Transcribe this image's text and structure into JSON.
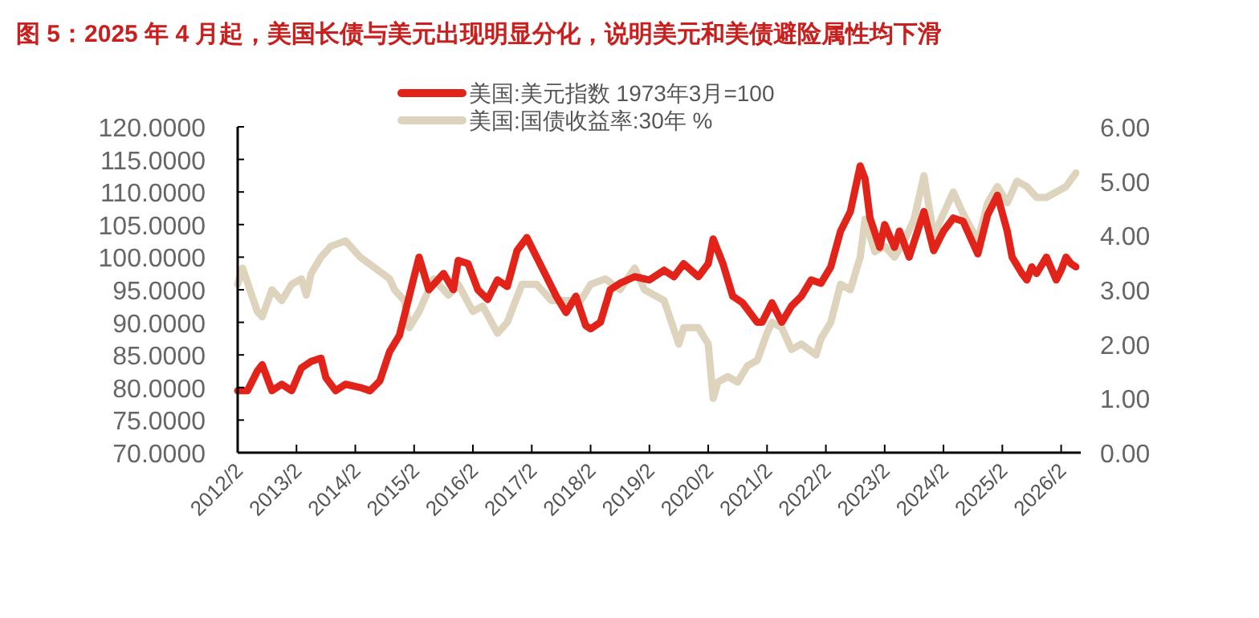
{
  "chart_data": {
    "type": "line",
    "title": "图 5：2025 年 4 月起，美国长债与美元出现明显分化，说明美元和美债避险属性均下滑",
    "legend": "top",
    "grid": false,
    "marker": "none",
    "line_style": "solid",
    "xlim": [
      "2012-02",
      "2026-06"
    ],
    "xticks": [
      {
        "value": "2012-02",
        "label": "2012/2"
      },
      {
        "value": "2013-02",
        "label": "2013/2"
      },
      {
        "value": "2014-02",
        "label": "2014/2"
      },
      {
        "value": "2015-02",
        "label": "2015/2"
      },
      {
        "value": "2016-02",
        "label": "2016/2"
      },
      {
        "value": "2017-02",
        "label": "2017/2"
      },
      {
        "value": "2018-02",
        "label": "2018/2"
      },
      {
        "value": "2019-02",
        "label": "2019/2"
      },
      {
        "value": "2020-02",
        "label": "2020/2"
      },
      {
        "value": "2021-02",
        "label": "2021/2"
      },
      {
        "value": "2022-02",
        "label": "2022/2"
      },
      {
        "value": "2023-02",
        "label": "2023/2"
      },
      {
        "value": "2024-02",
        "label": "2024/2"
      },
      {
        "value": "2025-02",
        "label": "2025/2"
      },
      {
        "value": "2026-02",
        "label": "2026/2"
      }
    ],
    "ylim": [
      70,
      120
    ],
    "yticks": [
      {
        "value": 70,
        "label": "70.0000"
      },
      {
        "value": 75,
        "label": "75.0000"
      },
      {
        "value": 80,
        "label": "80.0000"
      },
      {
        "value": 85,
        "label": "85.0000"
      },
      {
        "value": 90,
        "label": "90.0000"
      },
      {
        "value": 95,
        "label": "95.0000"
      },
      {
        "value": 100,
        "label": "100.0000"
      },
      {
        "value": 105,
        "label": "105.0000"
      },
      {
        "value": 110,
        "label": "110.0000"
      },
      {
        "value": 115,
        "label": "115.0000"
      },
      {
        "value": 120,
        "label": "120.0000"
      }
    ],
    "y2lim": [
      0,
      6
    ],
    "y2ticks": [
      {
        "value": 0,
        "label": "0.00"
      },
      {
        "value": 1,
        "label": "1.00"
      },
      {
        "value": 2,
        "label": "2.00"
      },
      {
        "value": 3,
        "label": "3.00"
      },
      {
        "value": 4,
        "label": "4.00"
      },
      {
        "value": 5,
        "label": "5.00"
      },
      {
        "value": 6,
        "label": "6.00"
      }
    ],
    "series": [
      {
        "name": "美国:美元指数 1973年3月=100",
        "color": "#e2231a",
        "axis": "y",
        "x": [
          "2012-02",
          "2012-04",
          "2012-06",
          "2012-07",
          "2012-09",
          "2012-11",
          "2013-01",
          "2013-03",
          "2013-05",
          "2013-07",
          "2013-08",
          "2013-10",
          "2013-12",
          "2014-03",
          "2014-05",
          "2014-07",
          "2014-09",
          "2014-11",
          "2015-01",
          "2015-03",
          "2015-05",
          "2015-08",
          "2015-10",
          "2015-11",
          "2016-01",
          "2016-03",
          "2016-05",
          "2016-07",
          "2016-09",
          "2016-11",
          "2017-01",
          "2017-03",
          "2017-05",
          "2017-07",
          "2017-09",
          "2017-11",
          "2018-01",
          "2018-02",
          "2018-04",
          "2018-06",
          "2018-08",
          "2018-11",
          "2019-02",
          "2019-05",
          "2019-07",
          "2019-09",
          "2019-12",
          "2020-02",
          "2020-03",
          "2020-05",
          "2020-07",
          "2020-09",
          "2020-12",
          "2021-01",
          "2021-03",
          "2021-05",
          "2021-07",
          "2021-09",
          "2021-11",
          "2022-01",
          "2022-03",
          "2022-05",
          "2022-07",
          "2022-09",
          "2022-10",
          "2022-11",
          "2023-01",
          "2023-02",
          "2023-04",
          "2023-05",
          "2023-07",
          "2023-10",
          "2023-12",
          "2024-02",
          "2024-04",
          "2024-06",
          "2024-09",
          "2024-11",
          "2025-01",
          "2025-03",
          "2025-04",
          "2025-06",
          "2025-07",
          "2025-08",
          "2025-09",
          "2025-11",
          "2026-01",
          "2026-02",
          "2026-03",
          "2026-04",
          "2026-05"
        ],
        "values": [
          79.5,
          79.5,
          82.5,
          83.5,
          79.5,
          80.5,
          79.5,
          83,
          84,
          84.5,
          81.5,
          79.5,
          80.5,
          80,
          79.5,
          81,
          85.5,
          88,
          94,
          100,
          95,
          97.5,
          95,
          99.5,
          99,
          95,
          93.5,
          96.5,
          95.5,
          101,
          103,
          100,
          97,
          94,
          91.5,
          94,
          89.5,
          89,
          90,
          95,
          96,
          97,
          96.5,
          98,
          97,
          99,
          97,
          99,
          102.8,
          99,
          94,
          93,
          90,
          90,
          93,
          90,
          92.5,
          94,
          96.5,
          96,
          98.5,
          104,
          107,
          114,
          112,
          106,
          101.5,
          105,
          101.5,
          104,
          100,
          107,
          101,
          104,
          106,
          105.5,
          100.5,
          106.5,
          109.5,
          104,
          100,
          97.5,
          96.5,
          98.5,
          97.5,
          100,
          96.5,
          98,
          100,
          99,
          98.5
        ]
      },
      {
        "name": "美国:国债收益率:30年 %",
        "color": "#ded3bc",
        "axis": "y2",
        "x": [
          "2012-02",
          "2012-03",
          "2012-06",
          "2012-07",
          "2012-09",
          "2012-11",
          "2013-01",
          "2013-03",
          "2013-04",
          "2013-05",
          "2013-07",
          "2013-09",
          "2013-12",
          "2014-01",
          "2014-03",
          "2014-06",
          "2014-09",
          "2014-10",
          "2014-12",
          "2015-01",
          "2015-03",
          "2015-06",
          "2015-09",
          "2015-11",
          "2016-02",
          "2016-04",
          "2016-07",
          "2016-09",
          "2016-12",
          "2017-03",
          "2017-06",
          "2017-09",
          "2017-12",
          "2018-02",
          "2018-05",
          "2018-08",
          "2018-11",
          "2019-01",
          "2019-03",
          "2019-05",
          "2019-08",
          "2019-09",
          "2019-12",
          "2020-02",
          "2020-03",
          "2020-04",
          "2020-06",
          "2020-08",
          "2020-10",
          "2020-12",
          "2021-02",
          "2021-03",
          "2021-05",
          "2021-07",
          "2021-09",
          "2021-12",
          "2022-01",
          "2022-03",
          "2022-05",
          "2022-07",
          "2022-09",
          "2022-10",
          "2022-12",
          "2023-02",
          "2023-04",
          "2023-06",
          "2023-08",
          "2023-10",
          "2023-12",
          "2024-01",
          "2024-04",
          "2024-06",
          "2024-09",
          "2024-11",
          "2025-01",
          "2025-03",
          "2025-05",
          "2025-07",
          "2025-09",
          "2025-11",
          "2026-01",
          "2026-03",
          "2026-05"
        ],
        "values": [
          3.1,
          3.4,
          2.6,
          2.5,
          3.0,
          2.8,
          3.1,
          3.2,
          2.9,
          3.3,
          3.6,
          3.8,
          3.9,
          3.8,
          3.6,
          3.4,
          3.2,
          3.0,
          2.8,
          2.3,
          2.6,
          3.2,
          2.9,
          3.1,
          2.6,
          2.7,
          2.2,
          2.4,
          3.1,
          3.1,
          2.8,
          2.8,
          2.8,
          3.1,
          3.2,
          3.0,
          3.4,
          3.0,
          2.9,
          2.8,
          2.0,
          2.3,
          2.3,
          2.0,
          1.0,
          1.3,
          1.4,
          1.3,
          1.6,
          1.7,
          2.2,
          2.4,
          2.3,
          1.9,
          2.0,
          1.8,
          2.1,
          2.4,
          3.1,
          3.0,
          3.6,
          4.3,
          3.7,
          3.8,
          3.6,
          3.9,
          4.3,
          5.1,
          4.0,
          4.2,
          4.8,
          4.4,
          3.9,
          4.6,
          4.9,
          4.6,
          5.0,
          4.9,
          4.7,
          4.7,
          4.8,
          4.9,
          5.15
        ]
      }
    ]
  }
}
